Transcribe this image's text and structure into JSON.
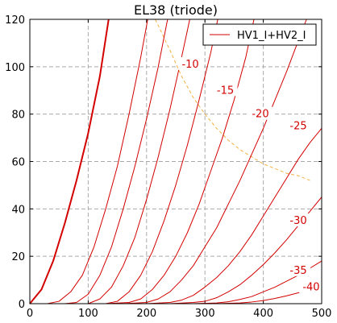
{
  "chart_data": {
    "type": "line",
    "title": "EL38 (triode)",
    "xlim": [
      0,
      500
    ],
    "ylim": [
      0,
      120
    ],
    "xticks": [
      0,
      100,
      200,
      300,
      400,
      500
    ],
    "yticks": [
      0,
      20,
      40,
      60,
      80,
      100,
      120
    ],
    "grid": true,
    "legend": {
      "placement": "top-right",
      "entries": [
        "HV1_I+HV2_I"
      ]
    },
    "colors": {
      "curve": "#d40000",
      "load_line": "#f5b041",
      "grid": "#aaaaaa"
    },
    "series": [
      {
        "name": "HV1_I+HV2_I",
        "label": "",
        "values": [
          [
            0,
            0
          ],
          [
            20,
            6
          ],
          [
            40,
            18
          ],
          [
            60,
            34
          ],
          [
            80,
            52
          ],
          [
            100,
            72
          ],
          [
            120,
            96
          ],
          [
            135,
            120
          ]
        ]
      },
      {
        "label": "",
        "values": [
          [
            0,
            0
          ],
          [
            30,
            0
          ],
          [
            50,
            1
          ],
          [
            70,
            5
          ],
          [
            90,
            12
          ],
          [
            110,
            24
          ],
          [
            130,
            40
          ],
          [
            150,
            58
          ],
          [
            170,
            80
          ],
          [
            190,
            104
          ],
          [
            202,
            120
          ]
        ]
      },
      {
        "label": "",
        "values": [
          [
            30,
            0
          ],
          [
            60,
            0
          ],
          [
            80,
            0.5
          ],
          [
            100,
            4
          ],
          [
            120,
            12
          ],
          [
            140,
            24
          ],
          [
            160,
            40
          ],
          [
            180,
            58
          ],
          [
            200,
            78
          ],
          [
            220,
            100
          ],
          [
            236,
            120
          ]
        ]
      },
      {
        "label": "-10",
        "values": [
          [
            60,
            0
          ],
          [
            100,
            0
          ],
          [
            120,
            2
          ],
          [
            140,
            7
          ],
          [
            160,
            16
          ],
          [
            180,
            28
          ],
          [
            200,
            44
          ],
          [
            220,
            62
          ],
          [
            240,
            82
          ],
          [
            260,
            104
          ],
          [
            274,
            120
          ]
        ]
      },
      {
        "label": "-15",
        "values": [
          [
            90,
            0
          ],
          [
            130,
            0
          ],
          [
            150,
            1
          ],
          [
            170,
            5
          ],
          [
            190,
            12
          ],
          [
            210,
            22
          ],
          [
            230,
            35
          ],
          [
            250,
            50
          ],
          [
            270,
            67
          ],
          [
            290,
            86
          ],
          [
            310,
            106
          ],
          [
            322,
            120
          ]
        ]
      },
      {
        "label": "-20",
        "values": [
          [
            130,
            0
          ],
          [
            170,
            0.5
          ],
          [
            190,
            2
          ],
          [
            210,
            6
          ],
          [
            230,
            12
          ],
          [
            250,
            20
          ],
          [
            270,
            30
          ],
          [
            290,
            42
          ],
          [
            310,
            56
          ],
          [
            330,
            70
          ],
          [
            350,
            86
          ],
          [
            370,
            104
          ],
          [
            384,
            120
          ]
        ]
      },
      {
        "label": "-25",
        "values": [
          [
            160,
            0
          ],
          [
            200,
            0.5
          ],
          [
            220,
            2
          ],
          [
            240,
            5
          ],
          [
            260,
            10
          ],
          [
            280,
            16
          ],
          [
            300,
            24
          ],
          [
            320,
            32
          ],
          [
            340,
            42
          ],
          [
            360,
            52
          ],
          [
            380,
            63
          ],
          [
            400,
            74
          ],
          [
            420,
            86
          ],
          [
            440,
            98
          ],
          [
            460,
            111
          ],
          [
            474,
            120
          ]
        ]
      },
      {
        "label": "",
        "values": [
          [
            200,
            0
          ],
          [
            240,
            0.5
          ],
          [
            260,
            1.5
          ],
          [
            280,
            3.5
          ],
          [
            300,
            7
          ],
          [
            320,
            11
          ],
          [
            340,
            16
          ],
          [
            360,
            22
          ],
          [
            380,
            29
          ],
          [
            400,
            37
          ],
          [
            420,
            45
          ],
          [
            440,
            53
          ],
          [
            460,
            61
          ],
          [
            480,
            68
          ],
          [
            500,
            74
          ]
        ]
      },
      {
        "label": "-30",
        "values": [
          [
            240,
            0
          ],
          [
            280,
            0.5
          ],
          [
            300,
            1
          ],
          [
            320,
            2.5
          ],
          [
            340,
            5
          ],
          [
            360,
            8
          ],
          [
            380,
            12
          ],
          [
            400,
            16.5
          ],
          [
            420,
            21.5
          ],
          [
            440,
            27
          ],
          [
            460,
            33
          ],
          [
            480,
            39
          ],
          [
            500,
            45
          ]
        ]
      },
      {
        "label": "-35",
        "values": [
          [
            280,
            0
          ],
          [
            320,
            0.3
          ],
          [
            340,
            0.8
          ],
          [
            360,
            1.8
          ],
          [
            380,
            3
          ],
          [
            400,
            5
          ],
          [
            420,
            7
          ],
          [
            440,
            9.5
          ],
          [
            460,
            12
          ],
          [
            480,
            15
          ],
          [
            500,
            18
          ]
        ]
      },
      {
        "label": "-40",
        "values": [
          [
            320,
            0
          ],
          [
            360,
            0.3
          ],
          [
            380,
            0.7
          ],
          [
            400,
            1.3
          ],
          [
            420,
            2.2
          ],
          [
            440,
            3.3
          ],
          [
            460,
            4.6
          ],
          [
            480,
            6
          ],
          [
            500,
            7.5
          ]
        ]
      }
    ],
    "load_line": [
      [
        215,
        120
      ],
      [
        240,
        107
      ],
      [
        260,
        96
      ],
      [
        280,
        87
      ],
      [
        300,
        80
      ],
      [
        320,
        74
      ],
      [
        340,
        69
      ],
      [
        360,
        65
      ],
      [
        380,
        62
      ],
      [
        400,
        59
      ],
      [
        420,
        57
      ],
      [
        440,
        55
      ],
      [
        460,
        54
      ],
      [
        480,
        52
      ]
    ],
    "curve_labels": [
      {
        "text": "-10",
        "x": 275,
        "y": 101
      },
      {
        "text": "-15",
        "x": 335,
        "y": 90
      },
      {
        "text": "-20",
        "x": 395,
        "y": 80
      },
      {
        "text": "-25",
        "x": 460,
        "y": 75
      },
      {
        "text": "-30",
        "x": 460,
        "y": 35
      },
      {
        "text": "-35",
        "x": 460,
        "y": 14
      },
      {
        "text": "-40",
        "x": 482,
        "y": 7
      }
    ]
  }
}
